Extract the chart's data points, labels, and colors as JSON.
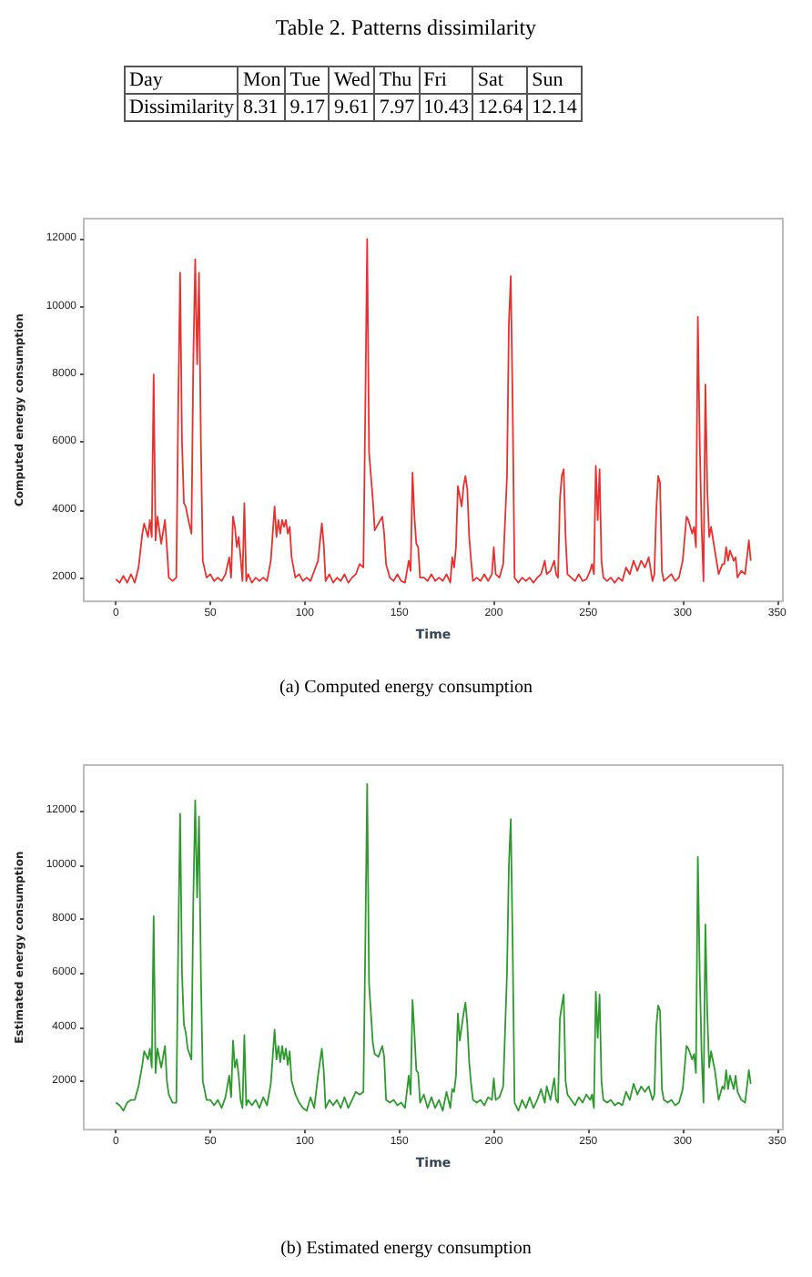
{
  "chart_data": [
    {
      "type": "other",
      "title": "Table 2. Patterns dissimilarity",
      "xlabel": "Day",
      "ylabel": "Dissimilarity",
      "categories": [
        "Mon",
        "Tue",
        "Wed",
        "Thu",
        "Fri",
        "Sat",
        "Sun"
      ],
      "values": [
        8.31,
        9.17,
        9.61,
        7.97,
        10.43,
        12.64,
        12.14
      ],
      "data_labels": true
    },
    {
      "type": "line",
      "xlabel": "Time",
      "ylabel": "Computed energy consumption",
      "annotations": [
        "(a) Computed energy consumption"
      ],
      "xlim": [
        -17,
        353
      ],
      "ylim": [
        1300,
        12600
      ],
      "xticks": [
        0,
        50,
        100,
        150,
        200,
        250,
        300,
        350
      ],
      "yticks": [
        2000,
        4000,
        6000,
        8000,
        10000,
        12000
      ],
      "x": [
        0,
        2,
        4,
        6,
        8,
        10,
        12,
        14,
        15,
        17,
        18,
        19,
        20,
        21,
        22,
        24,
        26,
        27,
        28,
        30,
        32,
        33,
        34,
        35,
        36,
        37,
        38,
        40,
        41,
        42,
        43,
        44,
        45,
        46,
        48,
        50,
        52,
        54,
        56,
        58,
        60,
        61,
        62,
        63,
        64,
        65,
        66,
        67,
        68,
        69,
        70,
        72,
        74,
        76,
        78,
        80,
        82,
        84,
        85,
        86,
        87,
        88,
        89,
        90,
        91,
        92,
        93,
        95,
        97,
        99,
        101,
        103,
        105,
        107,
        109,
        110,
        111,
        113,
        115,
        117,
        119,
        121,
        123,
        125,
        127,
        129,
        131,
        132,
        133,
        134,
        136,
        137,
        139,
        141,
        142,
        143,
        145,
        147,
        149,
        151,
        153,
        155,
        156,
        157,
        158,
        159,
        160,
        161,
        163,
        165,
        167,
        169,
        171,
        173,
        175,
        177,
        178,
        179,
        180,
        181,
        182,
        183,
        184,
        185,
        186,
        187,
        188,
        189,
        191,
        193,
        195,
        197,
        199,
        200,
        201,
        203,
        205,
        207,
        208,
        209,
        210,
        211,
        213,
        215,
        217,
        219,
        221,
        223,
        225,
        227,
        228,
        230,
        232,
        233,
        234,
        235,
        236,
        237,
        238,
        239,
        241,
        243,
        245,
        247,
        249,
        251,
        252,
        253,
        254,
        255,
        256,
        257,
        258,
        260,
        262,
        264,
        266,
        268,
        270,
        272,
        274,
        276,
        278,
        280,
        282,
        284,
        285,
        286,
        287,
        288,
        289,
        290,
        292,
        294,
        296,
        298,
        300,
        302,
        303,
        305,
        306,
        307,
        308,
        309,
        310,
        311,
        312,
        313,
        314,
        315,
        317,
        319,
        321,
        322,
        323,
        324,
        325,
        327,
        328,
        329,
        331,
        333,
        335,
        336
      ],
      "series": [
        {
          "color": "#e8312f",
          "values": [
            1950,
            1850,
            2050,
            1850,
            2100,
            1850,
            2300,
            3300,
            3600,
            3200,
            3700,
            3200,
            8000,
            3100,
            3800,
            3000,
            3700,
            2900,
            2000,
            1900,
            2000,
            7000,
            11000,
            6000,
            4200,
            4100,
            3800,
            3300,
            8500,
            11400,
            8300,
            11000,
            6000,
            2500,
            2000,
            2100,
            1900,
            2000,
            1900,
            2100,
            2600,
            2000,
            3800,
            3500,
            2900,
            3200,
            2600,
            1900,
            4200,
            1900,
            2100,
            1850,
            2000,
            1900,
            2000,
            1900,
            2500,
            4100,
            3200,
            3700,
            3300,
            3700,
            3500,
            3700,
            3300,
            3500,
            2600,
            2000,
            2100,
            1900,
            2000,
            1900,
            2200,
            2500,
            3600,
            3000,
            1900,
            2100,
            1850,
            2000,
            1900,
            2100,
            1850,
            2000,
            2100,
            2400,
            2300,
            7000,
            12000,
            5700,
            4300,
            3400,
            3600,
            3800,
            3300,
            2400,
            2000,
            1900,
            2100,
            1900,
            1850,
            2500,
            2200,
            5100,
            3800,
            3000,
            2900,
            2000,
            2000,
            1900,
            2100,
            1900,
            2000,
            1900,
            2100,
            1850,
            2600,
            2300,
            2900,
            4700,
            4400,
            4100,
            4700,
            5000,
            4600,
            3200,
            2500,
            1900,
            2000,
            1900,
            2100,
            1900,
            2100,
            2900,
            2100,
            2000,
            2400,
            5000,
            9500,
            10900,
            7000,
            2000,
            1850,
            2000,
            1900,
            2000,
            1850,
            2000,
            2100,
            2500,
            2100,
            2200,
            2500,
            2100,
            2000,
            4300,
            5000,
            5200,
            3200,
            2100,
            2000,
            1900,
            2100,
            1900,
            1950,
            2200,
            2400,
            2100,
            5300,
            3700,
            5200,
            2500,
            2000,
            1900,
            2000,
            1850,
            2000,
            1900,
            2300,
            2100,
            2500,
            2200,
            2500,
            2300,
            2600,
            1900,
            2100,
            4000,
            5000,
            4800,
            2200,
            1900,
            2000,
            2100,
            1900,
            2000,
            2500,
            3800,
            3700,
            3300,
            3500,
            2900,
            9700,
            6000,
            3500,
            1900,
            7700,
            4600,
            3200,
            3500,
            2800,
            2100,
            2400,
            2400,
            2900,
            2500,
            2800,
            2500,
            2600,
            2000,
            2200,
            2100,
            3100,
            2500
          ]
        }
      ]
    },
    {
      "type": "line",
      "xlabel": "Time",
      "ylabel": "Estimated energy consumption",
      "annotations": [
        "(b) Estimated energy consumption"
      ],
      "xlim": [
        -17,
        353
      ],
      "ylim": [
        200,
        13700
      ],
      "xticks": [
        0,
        50,
        100,
        150,
        200,
        250,
        300,
        350
      ],
      "yticks": [
        2000,
        4000,
        6000,
        8000,
        10000,
        12000
      ],
      "x": [
        0,
        2,
        4,
        6,
        8,
        10,
        12,
        14,
        15,
        17,
        18,
        19,
        20,
        21,
        22,
        24,
        26,
        27,
        28,
        30,
        32,
        33,
        34,
        35,
        36,
        37,
        38,
        40,
        41,
        42,
        43,
        44,
        45,
        46,
        48,
        50,
        52,
        54,
        56,
        58,
        60,
        61,
        62,
        63,
        64,
        65,
        66,
        67,
        68,
        69,
        70,
        72,
        74,
        76,
        78,
        80,
        82,
        84,
        85,
        86,
        87,
        88,
        89,
        90,
        91,
        92,
        93,
        95,
        97,
        99,
        101,
        103,
        105,
        107,
        109,
        110,
        111,
        113,
        115,
        117,
        119,
        121,
        123,
        125,
        127,
        129,
        131,
        132,
        133,
        134,
        136,
        137,
        139,
        141,
        142,
        143,
        145,
        147,
        149,
        151,
        153,
        155,
        156,
        157,
        158,
        159,
        160,
        161,
        163,
        165,
        167,
        169,
        171,
        173,
        175,
        177,
        178,
        179,
        180,
        181,
        182,
        183,
        184,
        185,
        186,
        187,
        188,
        189,
        191,
        193,
        195,
        197,
        199,
        200,
        201,
        203,
        205,
        207,
        208,
        209,
        210,
        211,
        213,
        215,
        217,
        219,
        221,
        223,
        225,
        227,
        228,
        230,
        232,
        233,
        234,
        235,
        236,
        237,
        238,
        239,
        241,
        243,
        245,
        247,
        249,
        251,
        252,
        253,
        254,
        255,
        256,
        257,
        258,
        260,
        262,
        264,
        266,
        268,
        270,
        272,
        274,
        276,
        278,
        280,
        282,
        284,
        285,
        286,
        287,
        288,
        289,
        290,
        292,
        294,
        296,
        298,
        300,
        302,
        303,
        305,
        306,
        307,
        308,
        309,
        310,
        311,
        312,
        313,
        314,
        315,
        317,
        319,
        321,
        322,
        323,
        324,
        325,
        327,
        328,
        329,
        331,
        333,
        335,
        336
      ],
      "series": [
        {
          "color": "#2e9a2e",
          "values": [
            1200,
            1100,
            900,
            1200,
            1300,
            1300,
            1800,
            2600,
            3100,
            2800,
            3200,
            2500,
            8100,
            2300,
            3200,
            2500,
            3300,
            2000,
            1500,
            1200,
            1200,
            7000,
            11900,
            6000,
            4100,
            3800,
            3200,
            2800,
            8800,
            12400,
            8800,
            11800,
            6000,
            2000,
            1300,
            1300,
            1100,
            1300,
            1000,
            1400,
            2200,
            1400,
            3500,
            2500,
            2800,
            2200,
            1300,
            1000,
            3700,
            1100,
            1300,
            1100,
            1300,
            1000,
            1400,
            1100,
            1900,
            3900,
            2800,
            3300,
            2700,
            3300,
            2800,
            3200,
            2600,
            3100,
            2000,
            1500,
            1200,
            1000,
            900,
            1400,
            1000,
            2200,
            3200,
            2400,
            1000,
            1300,
            1100,
            1300,
            1000,
            1400,
            1000,
            1300,
            1600,
            1500,
            1600,
            7000,
            13000,
            5600,
            3400,
            3000,
            2900,
            3300,
            2900,
            1300,
            1200,
            1300,
            1100,
            1200,
            1000,
            2200,
            1500,
            5000,
            3800,
            2400,
            2300,
            1200,
            1500,
            1000,
            1400,
            1000,
            1300,
            900,
            1600,
            1000,
            1700,
            1600,
            2200,
            4500,
            3500,
            4000,
            4500,
            4900,
            4100,
            2700,
            1900,
            1300,
            1200,
            1300,
            1100,
            1400,
            1300,
            2100,
            1300,
            1400,
            1800,
            6000,
            10000,
            11700,
            7000,
            1200,
            900,
            1300,
            1000,
            1400,
            1000,
            1300,
            1700,
            1200,
            1800,
            1300,
            2100,
            1300,
            1200,
            4300,
            4800,
            5200,
            2000,
            1500,
            1300,
            1100,
            1400,
            1200,
            1500,
            1300,
            1500,
            1000,
            5300,
            3600,
            5200,
            2000,
            1300,
            1200,
            1300,
            1100,
            1200,
            1100,
            1600,
            1300,
            1900,
            1500,
            1800,
            1600,
            1800,
            1300,
            1500,
            4000,
            4800,
            4600,
            1700,
            1300,
            1200,
            1300,
            1100,
            1200,
            1700,
            3300,
            3200,
            2800,
            3000,
            2300,
            10300,
            6000,
            3000,
            1200,
            7800,
            4500,
            2500,
            3100,
            2400,
            1300,
            1800,
            1700,
            2400,
            1700,
            2200,
            1700,
            2200,
            1600,
            1300,
            1200,
            2400,
            1900
          ]
        }
      ]
    }
  ]
}
